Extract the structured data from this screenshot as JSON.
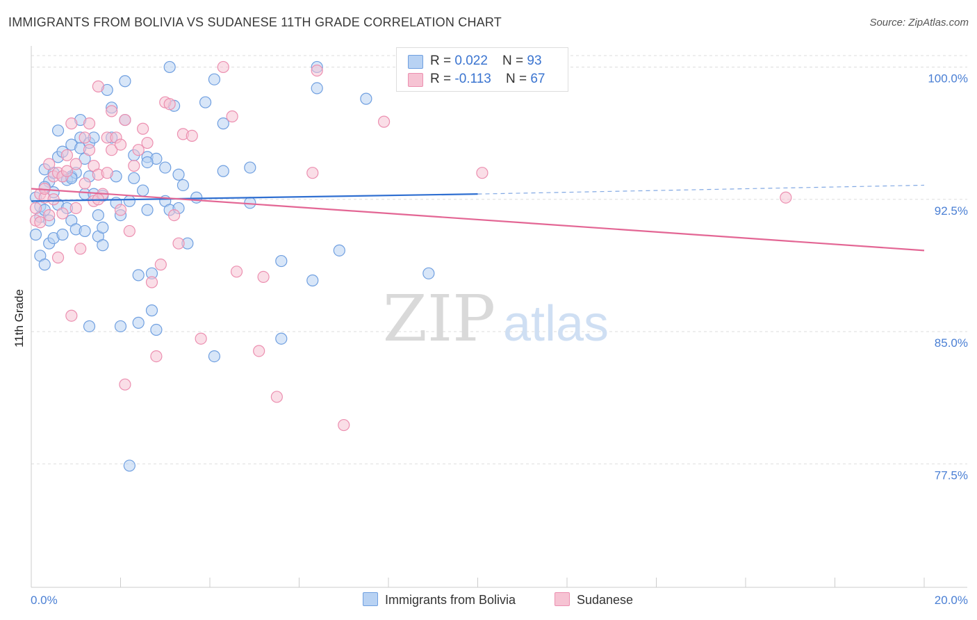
{
  "title": "IMMIGRANTS FROM BOLIVIA VS SUDANESE 11TH GRADE CORRELATION CHART",
  "source": "Source: ZipAtlas.com",
  "watermark": {
    "zip": "ZIP",
    "atlas": "atlas"
  },
  "colors": {
    "blue_fill": "#b8d2f3",
    "blue_stroke": "#6f9fe0",
    "blue_line": "#2f6fd1",
    "pink_fill": "#f6c3d3",
    "pink_stroke": "#ec8fb0",
    "pink_line": "#e36694",
    "tick_label": "#4a7fd4",
    "grid": "#dddddd"
  },
  "legend": {
    "rows": [
      {
        "r_label": "R = ",
        "r_value": "0.022",
        "n_label": "N = ",
        "n_value": "93"
      },
      {
        "r_label": "R = ",
        "r_value": "-0.113",
        "n_label": "N = ",
        "n_value": "67"
      }
    ]
  },
  "chart_data": {
    "type": "scatter",
    "title": "IMMIGRANTS FROM BOLIVIA VS SUDANESE 11TH GRADE CORRELATION CHART",
    "xlabel": "",
    "ylabel": "11th Grade",
    "xlim": [
      0,
      20
    ],
    "ylim": [
      70.5,
      101.2
    ],
    "x_tick_labels": [
      "0.0%",
      "20.0%"
    ],
    "y_ticks": [
      77.5,
      85.0,
      92.5,
      100.0
    ],
    "y_tick_labels": [
      "77.5%",
      "85.0%",
      "92.5%",
      "100.0%"
    ],
    "grid": true,
    "legend_position": "top-center",
    "series": [
      {
        "name": "Immigrants from Bolivia",
        "color": "#6f9fe0",
        "r": 0.022,
        "n": 93,
        "trend": {
          "x0": 0.0,
          "y0": 92.4,
          "x1": 10.0,
          "y1": 92.8,
          "dashed_to_x": 20.0,
          "dashed_y": 93.3
        },
        "points": [
          [
            0.1,
            90.5
          ],
          [
            0.1,
            92.6
          ],
          [
            0.2,
            92.1
          ],
          [
            0.2,
            91.5
          ],
          [
            0.2,
            89.3
          ],
          [
            0.3,
            94.2
          ],
          [
            0.3,
            91.9
          ],
          [
            0.3,
            88.8
          ],
          [
            0.4,
            93.5
          ],
          [
            0.4,
            91.3
          ],
          [
            0.4,
            90.0
          ],
          [
            0.5,
            92.9
          ],
          [
            0.5,
            90.3
          ],
          [
            0.5,
            94.0
          ],
          [
            0.6,
            96.4
          ],
          [
            0.6,
            94.9
          ],
          [
            0.6,
            92.2
          ],
          [
            0.7,
            95.2
          ],
          [
            0.7,
            93.8
          ],
          [
            0.7,
            90.5
          ],
          [
            0.8,
            93.6
          ],
          [
            0.8,
            92.0
          ],
          [
            0.9,
            95.6
          ],
          [
            0.9,
            93.8
          ],
          [
            0.9,
            91.3
          ],
          [
            1.0,
            94.0
          ],
          [
            1.0,
            90.8
          ],
          [
            1.1,
            97.0
          ],
          [
            1.1,
            96.0
          ],
          [
            1.1,
            95.4
          ],
          [
            1.2,
            94.8
          ],
          [
            1.2,
            92.8
          ],
          [
            1.2,
            90.7
          ],
          [
            1.3,
            95.7
          ],
          [
            1.3,
            93.8
          ],
          [
            1.3,
            85.3
          ],
          [
            1.4,
            96.0
          ],
          [
            1.4,
            92.8
          ],
          [
            1.5,
            91.6
          ],
          [
            1.5,
            90.4
          ],
          [
            1.6,
            90.9
          ],
          [
            1.6,
            89.9
          ],
          [
            1.7,
            98.7
          ],
          [
            1.8,
            97.7
          ],
          [
            1.8,
            96.0
          ],
          [
            1.9,
            93.8
          ],
          [
            1.9,
            92.3
          ],
          [
            2.0,
            91.6
          ],
          [
            2.0,
            85.3
          ],
          [
            2.1,
            99.2
          ],
          [
            2.1,
            97.0
          ],
          [
            2.2,
            92.4
          ],
          [
            2.2,
            77.4
          ],
          [
            2.3,
            95.0
          ],
          [
            2.3,
            93.7
          ],
          [
            2.4,
            88.2
          ],
          [
            2.4,
            85.5
          ],
          [
            2.5,
            93.0
          ],
          [
            2.6,
            94.9
          ],
          [
            2.6,
            91.9
          ],
          [
            2.7,
            88.3
          ],
          [
            2.7,
            86.2
          ],
          [
            2.8,
            85.1
          ],
          [
            2.8,
            94.8
          ],
          [
            3.0,
            94.3
          ],
          [
            3.0,
            92.4
          ],
          [
            3.1,
            100.0
          ],
          [
            3.1,
            91.9
          ],
          [
            3.2,
            97.8
          ],
          [
            3.3,
            93.9
          ],
          [
            3.3,
            92.0
          ],
          [
            3.4,
            93.3
          ],
          [
            3.5,
            90.0
          ],
          [
            3.7,
            92.6
          ],
          [
            3.9,
            98.0
          ],
          [
            4.1,
            99.3
          ],
          [
            4.1,
            83.6
          ],
          [
            4.3,
            96.8
          ],
          [
            4.3,
            94.1
          ],
          [
            4.9,
            94.3
          ],
          [
            4.9,
            92.3
          ],
          [
            5.6,
            89.0
          ],
          [
            5.6,
            84.6
          ],
          [
            6.3,
            87.9
          ],
          [
            6.4,
            100.0
          ],
          [
            6.4,
            98.8
          ],
          [
            6.9,
            89.6
          ],
          [
            7.5,
            98.2
          ],
          [
            8.9,
            88.3
          ],
          [
            0.3,
            93.2
          ],
          [
            0.9,
            93.7
          ],
          [
            1.6,
            92.7
          ],
          [
            2.6,
            94.6
          ]
        ]
      },
      {
        "name": "Sudanese",
        "color": "#ec8fb0",
        "r": -0.113,
        "n": 67,
        "trend": {
          "x0": 0.0,
          "y0": 93.1,
          "x1": 20.0,
          "y1": 89.6
        },
        "points": [
          [
            0.1,
            91.3
          ],
          [
            0.1,
            92.0
          ],
          [
            0.2,
            92.8
          ],
          [
            0.3,
            92.6
          ],
          [
            0.3,
            93.1
          ],
          [
            0.4,
            94.5
          ],
          [
            0.4,
            91.6
          ],
          [
            0.5,
            93.8
          ],
          [
            0.5,
            92.5
          ],
          [
            0.6,
            89.2
          ],
          [
            0.6,
            94.0
          ],
          [
            0.7,
            91.7
          ],
          [
            0.7,
            93.8
          ],
          [
            0.8,
            95.0
          ],
          [
            0.8,
            94.1
          ],
          [
            0.9,
            96.8
          ],
          [
            0.9,
            85.9
          ],
          [
            1.0,
            94.5
          ],
          [
            1.0,
            92.0
          ],
          [
            1.1,
            89.7
          ],
          [
            1.2,
            96.0
          ],
          [
            1.3,
            96.8
          ],
          [
            1.3,
            95.3
          ],
          [
            1.4,
            94.4
          ],
          [
            1.4,
            92.4
          ],
          [
            1.5,
            98.9
          ],
          [
            1.5,
            93.9
          ],
          [
            1.6,
            92.8
          ],
          [
            1.7,
            96.0
          ],
          [
            1.7,
            94.0
          ],
          [
            1.8,
            97.5
          ],
          [
            1.8,
            95.3
          ],
          [
            1.9,
            96.0
          ],
          [
            2.0,
            91.9
          ],
          [
            2.1,
            97.0
          ],
          [
            2.1,
            82.0
          ],
          [
            2.2,
            90.7
          ],
          [
            2.3,
            94.4
          ],
          [
            2.4,
            95.3
          ],
          [
            2.5,
            96.5
          ],
          [
            2.6,
            95.7
          ],
          [
            2.7,
            87.8
          ],
          [
            2.8,
            83.6
          ],
          [
            2.9,
            88.8
          ],
          [
            3.0,
            98.0
          ],
          [
            3.1,
            97.9
          ],
          [
            3.2,
            91.6
          ],
          [
            3.3,
            90.0
          ],
          [
            3.4,
            96.2
          ],
          [
            3.6,
            96.1
          ],
          [
            3.8,
            84.6
          ],
          [
            4.3,
            100.0
          ],
          [
            4.5,
            97.2
          ],
          [
            4.6,
            88.4
          ],
          [
            5.1,
            83.9
          ],
          [
            5.2,
            88.1
          ],
          [
            5.5,
            81.3
          ],
          [
            6.3,
            94.0
          ],
          [
            6.4,
            99.8
          ],
          [
            7.0,
            79.7
          ],
          [
            7.9,
            96.9
          ],
          [
            10.1,
            94.0
          ],
          [
            16.9,
            92.6
          ],
          [
            0.2,
            91.2
          ],
          [
            1.2,
            93.4
          ],
          [
            1.5,
            92.5
          ],
          [
            2.0,
            95.6
          ]
        ]
      }
    ]
  }
}
